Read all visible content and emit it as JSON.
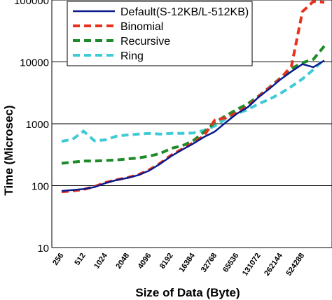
{
  "chart_data": {
    "type": "line",
    "title": "",
    "xlabel": "Size of Data (Byte)",
    "ylabel": "Time (Microsec)",
    "yscale": "log",
    "ylim": [
      10,
      100000
    ],
    "yticks": [
      "10",
      "100",
      "1000",
      "10000",
      "100000"
    ],
    "x_tick_labels": [
      "256",
      "512",
      "1024",
      "2048",
      "4096",
      "8192",
      "16384",
      "32768",
      "65536",
      "131072",
      "262144",
      "524288"
    ],
    "grid": "horizontal",
    "legend_position": "top-left",
    "categories": [
      "256",
      "362",
      "512",
      "724",
      "1024",
      "1448",
      "2048",
      "2896",
      "4096",
      "5793",
      "8192",
      "11585",
      "16384",
      "23170",
      "32768",
      "46341",
      "65536",
      "92682",
      "131072",
      "185364",
      "262144",
      "370728",
      "524288",
      "741455",
      "1048576"
    ],
    "series": [
      {
        "name": "Default(S-12KB/L-512KB)",
        "color": "#0a1a8c",
        "dash": "solid",
        "values": [
          82,
          85,
          88,
          95,
          110,
          123,
          133,
          148,
          175,
          225,
          300,
          380,
          475,
          610,
          750,
          1050,
          1450,
          1850,
          2700,
          3700,
          5200,
          7000,
          9200,
          8200,
          10500
        ]
      },
      {
        "name": "Binomial",
        "color": "#e8321e",
        "dash": "dashed",
        "values": [
          80,
          82,
          87,
          97,
          112,
          124,
          135,
          150,
          180,
          230,
          310,
          390,
          490,
          640,
          1150,
          1250,
          1500,
          1900,
          2750,
          3850,
          5400,
          8500,
          65000,
          95000,
          92000
        ]
      },
      {
        "name": "Recursive",
        "color": "#1f8a2a",
        "dash": "dashed",
        "values": [
          230,
          240,
          250,
          250,
          255,
          260,
          270,
          280,
          300,
          330,
          400,
          440,
          530,
          730,
          1050,
          1350,
          1700,
          2100,
          2800,
          3900,
          5500,
          7800,
          9700,
          11000,
          18000
        ]
      },
      {
        "name": "Ring",
        "color": "#3fcad6",
        "dash": "dashed",
        "values": [
          520,
          560,
          760,
          530,
          550,
          630,
          660,
          680,
          700,
          680,
          700,
          700,
          710,
          780,
          920,
          1200,
          1450,
          1700,
          2100,
          2500,
          3100,
          4000,
          5300,
          7500,
          11000
        ]
      }
    ]
  }
}
